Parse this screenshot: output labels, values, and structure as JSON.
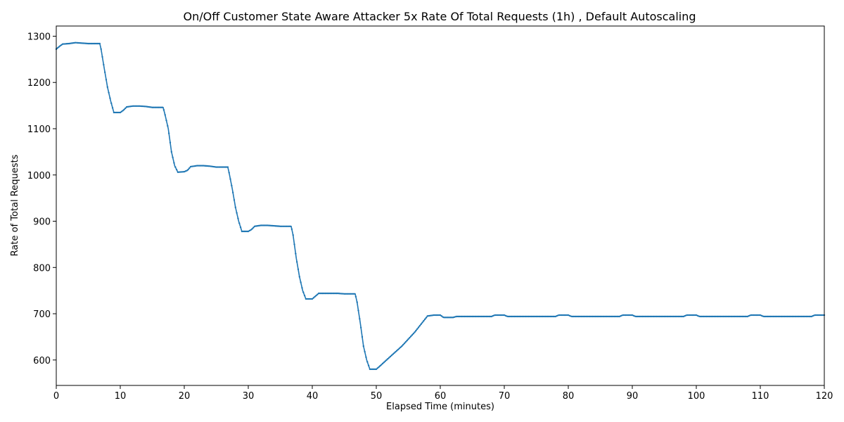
{
  "chart_data": {
    "type": "line",
    "title": "On/Off Customer State Aware Attacker 5x Rate Of Total Requests (1h) , Default Autoscaling",
    "xlabel": "Elapsed Time (minutes)",
    "ylabel": "Rate of Total Requests",
    "xlim": [
      0,
      120
    ],
    "ylim": [
      545,
      1322
    ],
    "xticks": [
      0,
      10,
      20,
      30,
      40,
      50,
      60,
      70,
      80,
      90,
      100,
      110,
      120
    ],
    "yticks": [
      600,
      700,
      800,
      900,
      1000,
      1100,
      1200,
      1300
    ],
    "grid": false,
    "legend": "none",
    "series_color": "#1f77b4",
    "series": [
      {
        "points": [
          [
            0,
            1272
          ],
          [
            0.5,
            1278
          ],
          [
            1,
            1283
          ],
          [
            2,
            1284
          ],
          [
            3,
            1286
          ],
          [
            4,
            1285
          ],
          [
            5,
            1284
          ],
          [
            6,
            1284
          ],
          [
            6.8,
            1284
          ],
          [
            7,
            1272
          ],
          [
            7.5,
            1230
          ],
          [
            8,
            1190
          ],
          [
            8.5,
            1160
          ],
          [
            9,
            1135
          ],
          [
            10,
            1135
          ],
          [
            10.5,
            1140
          ],
          [
            11,
            1147
          ],
          [
            12,
            1149
          ],
          [
            13,
            1149
          ],
          [
            14,
            1148
          ],
          [
            15,
            1146
          ],
          [
            16,
            1146
          ],
          [
            16.7,
            1146
          ],
          [
            17,
            1130
          ],
          [
            17.5,
            1100
          ],
          [
            18,
            1050
          ],
          [
            18.5,
            1020
          ],
          [
            19,
            1006
          ],
          [
            20,
            1007
          ],
          [
            20.5,
            1010
          ],
          [
            21,
            1018
          ],
          [
            22,
            1020
          ],
          [
            23,
            1020
          ],
          [
            24,
            1019
          ],
          [
            25,
            1017
          ],
          [
            26,
            1017
          ],
          [
            26.8,
            1017
          ],
          [
            27,
            1005
          ],
          [
            27.5,
            970
          ],
          [
            28,
            930
          ],
          [
            28.5,
            900
          ],
          [
            29,
            878
          ],
          [
            30,
            878
          ],
          [
            30.5,
            882
          ],
          [
            31,
            889
          ],
          [
            32,
            891
          ],
          [
            33,
            891
          ],
          [
            34,
            890
          ],
          [
            35,
            889
          ],
          [
            36,
            889
          ],
          [
            36.7,
            889
          ],
          [
            37,
            870
          ],
          [
            37.5,
            820
          ],
          [
            38,
            780
          ],
          [
            38.5,
            750
          ],
          [
            39,
            732
          ],
          [
            40,
            732
          ],
          [
            40.5,
            738
          ],
          [
            41,
            744
          ],
          [
            42,
            744
          ],
          [
            43,
            744
          ],
          [
            44,
            744
          ],
          [
            45,
            743
          ],
          [
            46,
            743
          ],
          [
            46.7,
            743
          ],
          [
            47,
            725
          ],
          [
            47.5,
            680
          ],
          [
            48,
            630
          ],
          [
            48.5,
            600
          ],
          [
            49,
            580
          ],
          [
            50,
            580
          ],
          [
            50.5,
            586
          ],
          [
            52,
            605
          ],
          [
            54,
            630
          ],
          [
            56,
            660
          ],
          [
            58,
            695
          ],
          [
            59,
            697
          ],
          [
            60,
            697
          ],
          [
            60.5,
            692
          ],
          [
            62,
            692
          ],
          [
            62.5,
            694
          ],
          [
            68,
            694
          ],
          [
            68.5,
            697
          ],
          [
            70,
            697
          ],
          [
            70.5,
            694
          ],
          [
            78,
            694
          ],
          [
            78.5,
            697
          ],
          [
            80,
            697
          ],
          [
            80.5,
            694
          ],
          [
            88,
            694
          ],
          [
            88.5,
            697
          ],
          [
            90,
            697
          ],
          [
            90.5,
            694
          ],
          [
            98,
            694
          ],
          [
            98.5,
            697
          ],
          [
            100,
            697
          ],
          [
            100.5,
            694
          ],
          [
            108,
            694
          ],
          [
            108.5,
            697
          ],
          [
            110,
            697
          ],
          [
            110.5,
            694
          ],
          [
            118,
            694
          ],
          [
            118.5,
            697
          ],
          [
            120,
            697
          ]
        ]
      }
    ]
  }
}
